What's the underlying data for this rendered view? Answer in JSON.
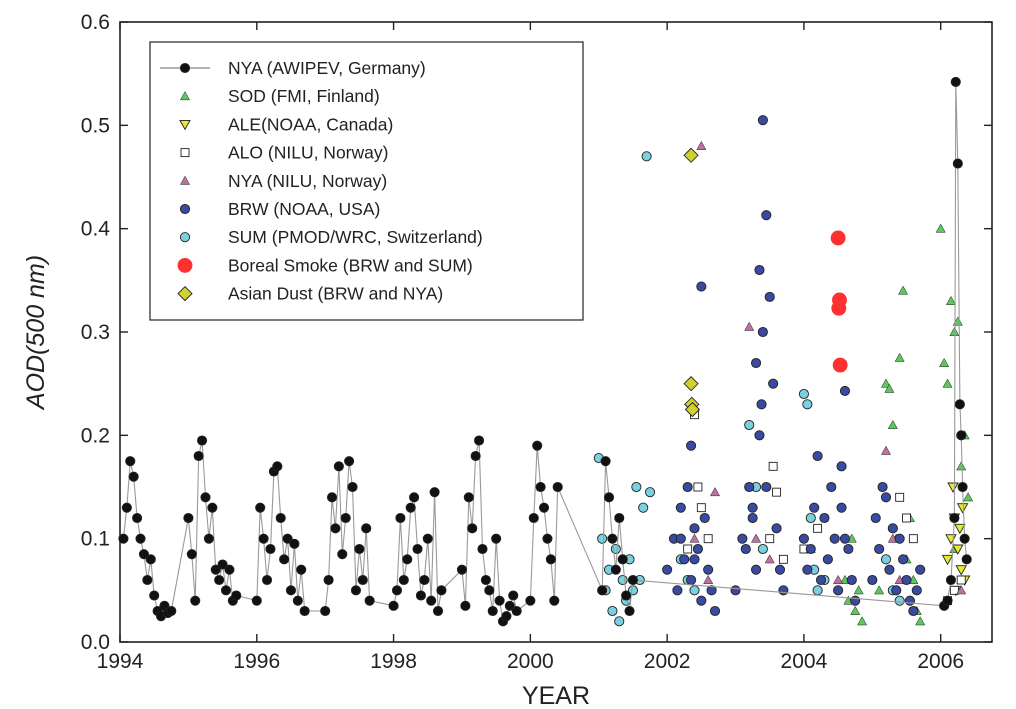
{
  "chart_data": {
    "type": "scatter",
    "xlabel": "YEAR",
    "ylabel": "AOD(500 nm)",
    "xlim": [
      1994,
      2006.75
    ],
    "ylim": [
      0.0,
      0.6
    ],
    "x_ticks": [
      1994,
      1996,
      1998,
      2000,
      2002,
      2004,
      2006
    ],
    "y_ticks": [
      0.0,
      0.1,
      0.2,
      0.3,
      0.4,
      0.5,
      0.6
    ],
    "y_tick_labels": [
      "0.0",
      "0.1",
      "0.2",
      "0.3",
      "0.4",
      "0.5",
      "0.6"
    ],
    "grid": false,
    "legend_position": "top-left",
    "series": [
      {
        "name": "NYA (AWIPEV, Germany)",
        "marker": "circle",
        "color": "#111111",
        "line": true,
        "line_color": "#999999",
        "x": [
          1994.05,
          1994.1,
          1994.15,
          1994.2,
          1994.25,
          1994.3,
          1994.35,
          1994.4,
          1994.45,
          1994.5,
          1994.55,
          1994.6,
          1994.65,
          1994.7,
          1994.75,
          1995.0,
          1995.05,
          1995.1,
          1995.15,
          1995.2,
          1995.25,
          1995.3,
          1995.35,
          1995.4,
          1995.45,
          1995.5,
          1995.55,
          1995.6,
          1995.65,
          1995.7,
          1996.0,
          1996.05,
          1996.1,
          1996.15,
          1996.2,
          1996.25,
          1996.3,
          1996.35,
          1996.4,
          1996.45,
          1996.5,
          1996.55,
          1996.6,
          1996.65,
          1996.7,
          1997.0,
          1997.05,
          1997.1,
          1997.15,
          1997.2,
          1997.25,
          1997.3,
          1997.35,
          1997.4,
          1997.45,
          1997.5,
          1997.55,
          1997.6,
          1997.65,
          1998.0,
          1998.05,
          1998.1,
          1998.15,
          1998.2,
          1998.25,
          1998.3,
          1998.35,
          1998.4,
          1998.45,
          1998.5,
          1998.55,
          1998.6,
          1998.65,
          1998.7,
          1999.0,
          1999.05,
          1999.1,
          1999.15,
          1999.2,
          1999.25,
          1999.3,
          1999.35,
          1999.4,
          1999.45,
          1999.5,
          1999.55,
          1999.6,
          1999.65,
          1999.7,
          1999.75,
          1999.8,
          2000.0,
          2000.05,
          2000.1,
          2000.15,
          2000.2,
          2000.25,
          2000.3,
          2000.35,
          2000.4,
          2001.05,
          2001.1,
          2001.15,
          2001.2,
          2001.25,
          2001.3,
          2001.35,
          2001.4,
          2001.45,
          2001.5,
          2006.05,
          2006.1,
          2006.15,
          2006.2,
          2006.22,
          2006.25,
          2006.28,
          2006.3,
          2006.32,
          2006.35,
          2006.38
        ],
        "y": [
          0.1,
          0.13,
          0.175,
          0.16,
          0.12,
          0.1,
          0.085,
          0.06,
          0.08,
          0.045,
          0.03,
          0.025,
          0.035,
          0.028,
          0.03,
          0.12,
          0.085,
          0.04,
          0.18,
          0.195,
          0.14,
          0.1,
          0.13,
          0.07,
          0.06,
          0.075,
          0.05,
          0.07,
          0.04,
          0.045,
          0.04,
          0.13,
          0.1,
          0.06,
          0.09,
          0.165,
          0.17,
          0.12,
          0.08,
          0.1,
          0.05,
          0.095,
          0.04,
          0.07,
          0.03,
          0.03,
          0.06,
          0.14,
          0.11,
          0.17,
          0.085,
          0.12,
          0.175,
          0.15,
          0.05,
          0.09,
          0.06,
          0.11,
          0.04,
          0.035,
          0.05,
          0.12,
          0.06,
          0.08,
          0.13,
          0.14,
          0.09,
          0.045,
          0.06,
          0.1,
          0.04,
          0.145,
          0.03,
          0.05,
          0.07,
          0.035,
          0.14,
          0.11,
          0.18,
          0.195,
          0.09,
          0.06,
          0.05,
          0.03,
          0.1,
          0.04,
          0.02,
          0.025,
          0.035,
          0.045,
          0.03,
          0.04,
          0.12,
          0.19,
          0.15,
          0.13,
          0.1,
          0.08,
          0.04,
          0.15,
          0.05,
          0.175,
          0.14,
          0.1,
          0.07,
          0.12,
          0.08,
          0.045,
          0.03,
          0.06,
          0.035,
          0.04,
          0.06,
          0.12,
          0.542,
          0.463,
          0.23,
          0.2,
          0.15,
          0.1,
          0.08
        ]
      },
      {
        "name": "SOD (FMI, Finland)",
        "marker": "triangle-up",
        "color": "#5ac85a",
        "x": [
          2004.6,
          2004.65,
          2004.7,
          2004.75,
          2004.8,
          2004.85,
          2005.1,
          2005.2,
          2005.25,
          2005.3,
          2005.35,
          2005.4,
          2005.45,
          2005.5,
          2005.55,
          2005.6,
          2005.65,
          2005.7,
          2006.0,
          2006.05,
          2006.1,
          2006.15,
          2006.2,
          2006.25,
          2006.3,
          2006.35,
          2006.4,
          2006.2,
          2006.3
        ],
        "y": [
          0.06,
          0.04,
          0.1,
          0.03,
          0.05,
          0.02,
          0.05,
          0.25,
          0.245,
          0.21,
          0.1,
          0.275,
          0.34,
          0.08,
          0.12,
          0.06,
          0.03,
          0.02,
          0.4,
          0.27,
          0.25,
          0.33,
          0.3,
          0.31,
          0.17,
          0.2,
          0.14,
          0.09,
          0.06
        ]
      },
      {
        "name": "ALE(NOAA, Canada)",
        "marker": "triangle-down",
        "color": "#e8e830",
        "x": [
          2006.1,
          2006.15,
          2006.2,
          2006.25,
          2006.3,
          2006.35,
          2006.18,
          2006.28,
          2006.22,
          2006.32
        ],
        "y": [
          0.08,
          0.1,
          0.12,
          0.09,
          0.07,
          0.06,
          0.15,
          0.11,
          0.05,
          0.13
        ]
      },
      {
        "name": "ALO (NILU, Norway)",
        "marker": "square",
        "color": "#ffffff",
        "x": [
          2002.3,
          2002.4,
          2002.5,
          2002.6,
          2003.5,
          2003.6,
          2003.7,
          2004.0,
          2004.2,
          2005.4,
          2005.5,
          2005.6,
          2006.1,
          2006.2,
          2006.3,
          2002.45,
          2003.55
        ],
        "y": [
          0.09,
          0.22,
          0.13,
          0.1,
          0.1,
          0.145,
          0.08,
          0.09,
          0.11,
          0.14,
          0.12,
          0.1,
          0.04,
          0.05,
          0.06,
          0.15,
          0.17
        ]
      },
      {
        "name": "NYA (NILU, Norway)",
        "marker": "triangle-up",
        "color": "#c070a0",
        "x": [
          2002.5,
          2002.6,
          2002.4,
          2002.7,
          2003.2,
          2003.3,
          2003.5,
          2004.1,
          2004.5,
          2005.2,
          2005.3,
          2005.4,
          2006.3
        ],
        "y": [
          0.48,
          0.06,
          0.1,
          0.145,
          0.305,
          0.1,
          0.08,
          0.09,
          0.06,
          0.185,
          0.1,
          0.06,
          0.05
        ]
      },
      {
        "name": "BRW (NOAA, USA)",
        "marker": "circle",
        "color": "#3a4aa0",
        "x": [
          2002.0,
          2002.1,
          2002.15,
          2002.2,
          2002.25,
          2002.3,
          2002.35,
          2002.4,
          2002.45,
          2002.5,
          2002.55,
          2002.6,
          2002.65,
          2002.7,
          2002.35,
          2002.5,
          2002.2,
          2002.4,
          2003.0,
          2003.1,
          2003.15,
          2003.2,
          2003.25,
          2003.3,
          2003.35,
          2003.4,
          2003.45,
          2003.5,
          2003.55,
          2003.6,
          2003.65,
          2003.7,
          2003.35,
          2003.4,
          2003.38,
          2003.3,
          2003.25,
          2003.45,
          2004.0,
          2004.05,
          2004.1,
          2004.15,
          2004.2,
          2004.25,
          2004.3,
          2004.35,
          2004.4,
          2004.45,
          2004.5,
          2004.55,
          2004.6,
          2004.65,
          2004.7,
          2004.75,
          2004.55,
          2004.6,
          2005.0,
          2005.05,
          2005.1,
          2005.15,
          2005.2,
          2005.25,
          2005.3,
          2005.35,
          2005.4,
          2005.45,
          2005.5,
          2005.55,
          2005.6,
          2005.65,
          2005.7
        ],
        "y": [
          0.07,
          0.1,
          0.05,
          0.13,
          0.08,
          0.15,
          0.06,
          0.11,
          0.09,
          0.04,
          0.12,
          0.07,
          0.05,
          0.03,
          0.19,
          0.344,
          0.1,
          0.08,
          0.05,
          0.1,
          0.09,
          0.15,
          0.12,
          0.07,
          0.36,
          0.505,
          0.413,
          0.334,
          0.25,
          0.11,
          0.07,
          0.05,
          0.2,
          0.3,
          0.23,
          0.27,
          0.13,
          0.15,
          0.1,
          0.07,
          0.09,
          0.13,
          0.18,
          0.06,
          0.12,
          0.08,
          0.15,
          0.1,
          0.05,
          0.17,
          0.243,
          0.09,
          0.06,
          0.04,
          0.13,
          0.1,
          0.06,
          0.12,
          0.09,
          0.15,
          0.14,
          0.07,
          0.11,
          0.05,
          0.1,
          0.08,
          0.06,
          0.04,
          0.03,
          0.05,
          0.07
        ]
      },
      {
        "name": "SUM (PMOD/WRC, Switzerland)",
        "marker": "circle",
        "color": "#7ad0e0",
        "x": [
          2001.0,
          2001.05,
          2001.1,
          2001.15,
          2001.2,
          2001.25,
          2001.3,
          2001.35,
          2001.4,
          2001.45,
          2001.5,
          2001.55,
          2001.6,
          2001.7,
          2001.75,
          2001.65,
          2002.2,
          2002.3,
          2002.4,
          2003.2,
          2003.3,
          2003.4,
          2004.0,
          2004.05,
          2004.1,
          2004.15,
          2004.2,
          2004.3,
          2005.2,
          2005.3,
          2005.4
        ],
        "y": [
          0.178,
          0.1,
          0.05,
          0.07,
          0.03,
          0.09,
          0.02,
          0.06,
          0.04,
          0.08,
          0.05,
          0.15,
          0.06,
          0.47,
          0.145,
          0.13,
          0.08,
          0.06,
          0.05,
          0.21,
          0.15,
          0.09,
          0.24,
          0.23,
          0.12,
          0.07,
          0.05,
          0.06,
          0.08,
          0.05,
          0.04
        ]
      },
      {
        "name": "Boreal Smoke (BRW and SUM)",
        "marker": "big-circle",
        "color": "#ff3030",
        "x": [
          2004.5,
          2004.52,
          2004.51,
          2004.53
        ],
        "y": [
          0.391,
          0.331,
          0.323,
          0.268
        ]
      },
      {
        "name": "Asian Dust (BRW and NYA)",
        "marker": "diamond",
        "color": "#d0d030",
        "x": [
          2002.35,
          2002.35,
          2002.36,
          2002.37
        ],
        "y": [
          0.471,
          0.25,
          0.23,
          0.225
        ]
      }
    ]
  }
}
